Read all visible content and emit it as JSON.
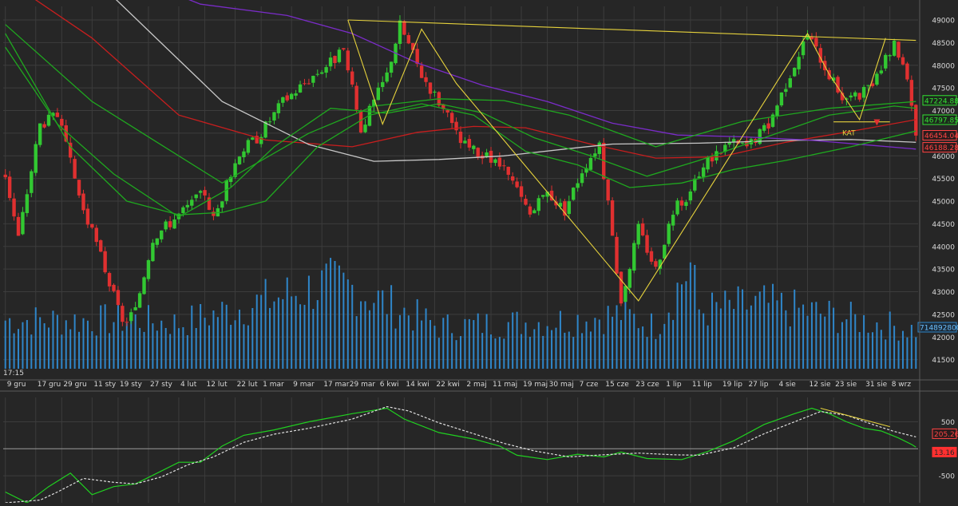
{
  "colors": {
    "background": "#262626",
    "grid": "#3c3c3c",
    "panel_border": "#5a5a5a",
    "candle_up": "#32c832",
    "candle_down": "#e03030",
    "volume": "#2f86c9",
    "ma_red": "#c81e1e",
    "ma_white": "#c8c8c8",
    "ma_purple": "#7a2cc8",
    "ma_green": "#1fa81f",
    "trendline": "#e6d23c",
    "oscillator": "#20d020",
    "signal": "#e0e0e0",
    "axis_text": "#d8d8d8"
  },
  "header": {
    "time_label": "17:15"
  },
  "chart_data": [
    {
      "type": "candlestick",
      "title": "",
      "x_ticks": [
        "9 gru",
        "17 gru",
        "29 gru",
        "11 sty",
        "19 sty",
        "27 sty",
        "4 lut",
        "12 lut",
        "22 lut",
        "1 mar",
        "9 mar",
        "17 mar",
        "29 mar",
        "6 kwi",
        "14 kwi",
        "22 kwi",
        "2 maj",
        "11 maj",
        "19 maj",
        "30 maj",
        "7 cze",
        "15 cze",
        "23 cze",
        "1 lip",
        "11 lip",
        "19 lip",
        "27 lip",
        "4 sie",
        "12 sie",
        "23 sie",
        "31 sie",
        "8 wrz"
      ],
      "y_ticks": [
        41500,
        42000,
        42500,
        43000,
        43500,
        44000,
        44500,
        45000,
        45500,
        46000,
        46500,
        47000,
        47500,
        48000,
        48500,
        49000
      ],
      "ylim": [
        41300,
        49300
      ],
      "grid": true,
      "price_anchors": [
        [
          0,
          45600
        ],
        [
          3,
          44200
        ],
        [
          8,
          46700
        ],
        [
          12,
          46900
        ],
        [
          18,
          44800
        ],
        [
          22,
          43800
        ],
        [
          27,
          42300
        ],
        [
          30,
          42600
        ],
        [
          34,
          44200
        ],
        [
          40,
          44700
        ],
        [
          46,
          45200
        ],
        [
          48,
          44600
        ],
        [
          54,
          46100
        ],
        [
          58,
          46400
        ],
        [
          64,
          47200
        ],
        [
          70,
          47700
        ],
        [
          78,
          48300
        ],
        [
          82,
          46600
        ],
        [
          88,
          47800
        ],
        [
          91,
          48900
        ],
        [
          96,
          47800
        ],
        [
          100,
          47200
        ],
        [
          105,
          46300
        ],
        [
          110,
          46000
        ],
        [
          114,
          45800
        ],
        [
          117,
          45400
        ],
        [
          121,
          44700
        ],
        [
          125,
          45200
        ],
        [
          129,
          44800
        ],
        [
          133,
          45700
        ],
        [
          137,
          46300
        ],
        [
          142,
          42800
        ],
        [
          146,
          44400
        ],
        [
          150,
          43500
        ],
        [
          154,
          44800
        ],
        [
          158,
          45200
        ],
        [
          162,
          45900
        ],
        [
          167,
          46300
        ],
        [
          171,
          46200
        ],
        [
          176,
          46700
        ],
        [
          180,
          47600
        ],
        [
          185,
          48700
        ],
        [
          190,
          47800
        ],
        [
          193,
          47300
        ],
        [
          197,
          47300
        ],
        [
          201,
          47700
        ],
        [
          205,
          48500
        ],
        [
          208,
          47800
        ],
        [
          210,
          46500
        ]
      ],
      "volume_anchors": [
        [
          0,
          1500
        ],
        [
          30,
          1500
        ],
        [
          40,
          1400
        ],
        [
          74,
          2600
        ],
        [
          80,
          2500
        ],
        [
          100,
          1300
        ],
        [
          130,
          1500
        ],
        [
          142,
          1700
        ],
        [
          150,
          1300
        ],
        [
          158,
          3200
        ],
        [
          160,
          1800
        ],
        [
          175,
          2000
        ],
        [
          210,
          1200
        ]
      ],
      "volume_range": [
        0,
        4000
      ],
      "moving_averages": [
        {
          "key": "ma_red",
          "points": [
            [
              0,
              49900
            ],
            [
              20,
              48600
            ],
            [
              40,
              46900
            ],
            [
              60,
              46350
            ],
            [
              80,
              46200
            ],
            [
              95,
              46520
            ],
            [
              108,
              46650
            ],
            [
              120,
              46620
            ],
            [
              135,
              46260
            ],
            [
              150,
              45950
            ],
            [
              165,
              45980
            ],
            [
              180,
              46300
            ],
            [
              195,
              46540
            ],
            [
              210,
              46800
            ]
          ]
        },
        {
          "key": "ma_white",
          "points": [
            [
              0,
              50200
            ],
            [
              25,
              49500
            ],
            [
              50,
              47200
            ],
            [
              70,
              46250
            ],
            [
              85,
              45880
            ],
            [
              100,
              45920
            ],
            [
              115,
              46000
            ],
            [
              130,
              46160
            ],
            [
              140,
              46260
            ],
            [
              160,
              46280
            ],
            [
              180,
              46340
            ],
            [
              195,
              46360
            ],
            [
              210,
              46300
            ]
          ]
        },
        {
          "key": "ma_purple",
          "points": [
            [
              25,
              50100
            ],
            [
              45,
              49350
            ],
            [
              65,
              49100
            ],
            [
              80,
              48700
            ],
            [
              95,
              48050
            ],
            [
              110,
              47560
            ],
            [
              125,
              47200
            ],
            [
              140,
              46720
            ],
            [
              155,
              46460
            ],
            [
              170,
              46420
            ],
            [
              185,
              46350
            ],
            [
              200,
              46230
            ],
            [
              210,
              46150
            ]
          ]
        },
        {
          "key": "ma_green",
          "points": [
            [
              0,
              48900
            ],
            [
              20,
              47200
            ],
            [
              35,
              46300
            ],
            [
              50,
              45400
            ],
            [
              70,
              46500
            ],
            [
              85,
              47100
            ],
            [
              100,
              47260
            ],
            [
              115,
              47220
            ],
            [
              130,
              46900
            ],
            [
              150,
              46200
            ],
            [
              170,
              46760
            ],
            [
              190,
              47050
            ],
            [
              210,
              47200
            ]
          ]
        },
        {
          "key": "ma_green",
          "points": [
            [
              0,
              48400
            ],
            [
              12,
              46700
            ],
            [
              25,
              45600
            ],
            [
              40,
              44650
            ],
            [
              52,
              45300
            ],
            [
              62,
              46200
            ],
            [
              75,
              47050
            ],
            [
              88,
              46940
            ],
            [
              100,
              47150
            ],
            [
              110,
              46950
            ],
            [
              122,
              46400
            ],
            [
              135,
              46000
            ],
            [
              148,
              45550
            ],
            [
              160,
              45900
            ],
            [
              175,
              46400
            ],
            [
              190,
              46900
            ],
            [
              205,
              47100
            ],
            [
              210,
              47050
            ]
          ]
        },
        {
          "key": "ma_green",
          "points": [
            [
              0,
              48700
            ],
            [
              15,
              46200
            ],
            [
              28,
              45000
            ],
            [
              40,
              44700
            ],
            [
              50,
              44750
            ],
            [
              60,
              45000
            ],
            [
              72,
              46200
            ],
            [
              84,
              46900
            ],
            [
              96,
              47150
            ],
            [
              108,
              46900
            ],
            [
              120,
              46100
            ],
            [
              132,
              45800
            ],
            [
              144,
              45300
            ],
            [
              156,
              45400
            ],
            [
              168,
              45700
            ],
            [
              180,
              45900
            ],
            [
              195,
              46200
            ],
            [
              210,
              46550
            ]
          ]
        }
      ],
      "trendlines": [
        [
          [
            79,
            49000
          ],
          [
            210,
            48550
          ]
        ],
        [
          [
            79,
            49000
          ],
          [
            87,
            46700
          ],
          [
            96,
            48800
          ],
          [
            104,
            47600
          ],
          [
            146,
            42800
          ],
          [
            185,
            48700
          ],
          [
            190,
            47800
          ],
          [
            197,
            46800
          ],
          [
            203,
            48600
          ]
        ],
        [
          [
            191,
            46750
          ],
          [
            204,
            46750
          ]
        ]
      ],
      "price_labels": [
        {
          "value": 47224.88,
          "text": "47224.88",
          "bg": "#1c2a1c",
          "fg": "#33e033",
          "border": "#33e033"
        },
        {
          "value": 46797.85,
          "text": "46797.85",
          "bg": "#1c2a1c",
          "fg": "#33e033",
          "border": "#33e033"
        },
        {
          "value": 46454.04,
          "text": "46454.04",
          "bg": "#2a1c1c",
          "fg": "#ff4444",
          "border": "#ff4444"
        },
        {
          "value": 46188.28,
          "text": "46188.28",
          "bg": "#2a1c1c",
          "fg": "#ff4444",
          "border": "#ff4444"
        }
      ],
      "annotations": [
        {
          "text": "KAT",
          "index": 193,
          "value": 46450
        }
      ],
      "volume_label": "714892800"
    },
    {
      "type": "line",
      "title": "",
      "ylim": [
        -1000,
        950
      ],
      "y_ticks": [
        500,
        -500
      ],
      "zero_line": 0,
      "series": [
        {
          "key": "oscillator",
          "style": "solid",
          "points": [
            [
              0,
              -800
            ],
            [
              5,
              -1000
            ],
            [
              10,
              -700
            ],
            [
              15,
              -450
            ],
            [
              20,
              -850
            ],
            [
              25,
              -700
            ],
            [
              30,
              -650
            ],
            [
              35,
              -450
            ],
            [
              40,
              -250
            ],
            [
              45,
              -250
            ],
            [
              50,
              50
            ],
            [
              55,
              250
            ],
            [
              62,
              350
            ],
            [
              70,
              500
            ],
            [
              80,
              650
            ],
            [
              88,
              750
            ],
            [
              92,
              550
            ],
            [
              100,
              300
            ],
            [
              108,
              180
            ],
            [
              114,
              50
            ],
            [
              118,
              -120
            ],
            [
              125,
              -200
            ],
            [
              132,
              -100
            ],
            [
              138,
              -150
            ],
            [
              142,
              -60
            ],
            [
              148,
              -180
            ],
            [
              156,
              -200
            ],
            [
              162,
              -50
            ],
            [
              168,
              150
            ],
            [
              175,
              450
            ],
            [
              182,
              650
            ],
            [
              186,
              750
            ],
            [
              190,
              650
            ],
            [
              194,
              500
            ],
            [
              198,
              380
            ],
            [
              202,
              330
            ],
            [
              206,
              200
            ],
            [
              209,
              80
            ],
            [
              210,
              30
            ]
          ]
        },
        {
          "key": "signal",
          "style": "dashed",
          "points": [
            [
              0,
              -1000
            ],
            [
              8,
              -950
            ],
            [
              12,
              -800
            ],
            [
              18,
              -550
            ],
            [
              25,
              -620
            ],
            [
              30,
              -650
            ],
            [
              36,
              -520
            ],
            [
              42,
              -300
            ],
            [
              48,
              -150
            ],
            [
              55,
              120
            ],
            [
              62,
              270
            ],
            [
              70,
              380
            ],
            [
              80,
              550
            ],
            [
              88,
              780
            ],
            [
              93,
              700
            ],
            [
              100,
              480
            ],
            [
              108,
              280
            ],
            [
              115,
              100
            ],
            [
              122,
              -40
            ],
            [
              130,
              -150
            ],
            [
              138,
              -110
            ],
            [
              146,
              -80
            ],
            [
              154,
              -110
            ],
            [
              160,
              -120
            ],
            [
              168,
              20
            ],
            [
              175,
              280
            ],
            [
              182,
              500
            ],
            [
              188,
              690
            ],
            [
              194,
              620
            ],
            [
              200,
              450
            ],
            [
              205,
              320
            ],
            [
              210,
              220
            ]
          ]
        }
      ],
      "trendline": [
        [
          188,
          750
        ],
        [
          204,
          410
        ]
      ],
      "value_labels": [
        {
          "value": 205.26,
          "text": "205.26",
          "bg": "#2a1c1c",
          "fg": "#ff4444",
          "border": "#ff4444"
        },
        {
          "value": 13.16,
          "text": "13.16",
          "bg": "#ff3030",
          "fg": "#262626",
          "border": "#ff3030"
        }
      ]
    }
  ]
}
